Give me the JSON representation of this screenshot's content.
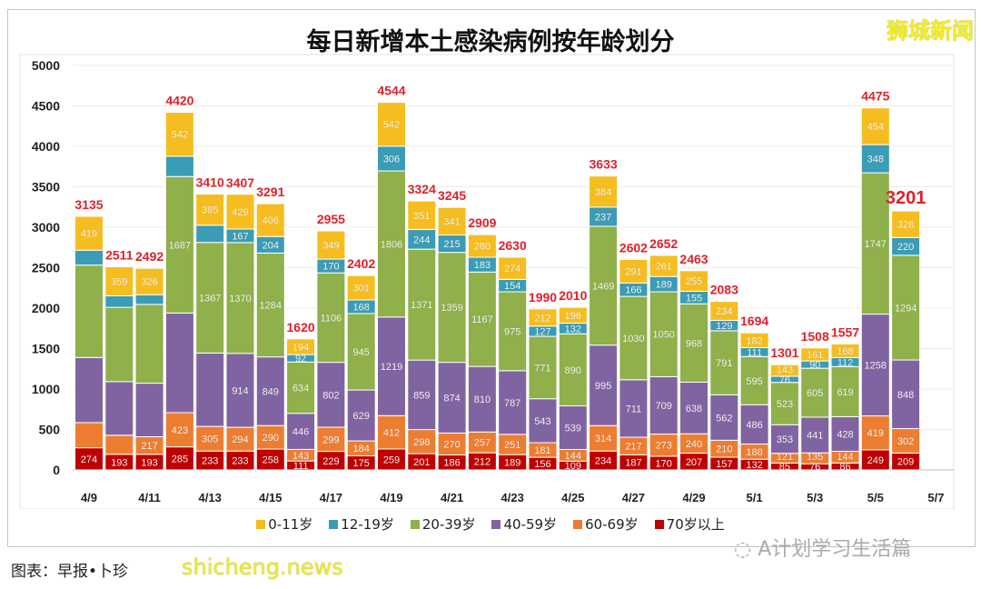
{
  "chart_data": {
    "type": "bar",
    "stacked": true,
    "title": "每日新增本土感染病例按年龄划分",
    "xlabel": "",
    "ylabel": "",
    "ylim": [
      0,
      5000
    ],
    "yticks": [
      0,
      500,
      1000,
      1500,
      2000,
      2500,
      3000,
      3500,
      4000,
      4500,
      5000
    ],
    "grid": true,
    "legend": "bottom",
    "categories": [
      "4/9",
      "4/10",
      "4/11",
      "4/12",
      "4/13",
      "4/14",
      "4/15",
      "4/16",
      "4/17",
      "4/18",
      "4/19",
      "4/20",
      "4/21",
      "4/22",
      "4/23",
      "4/24",
      "4/25",
      "4/26",
      "4/27",
      "4/28",
      "4/29",
      "4/30",
      "5/1",
      "5/2",
      "5/3",
      "5/4",
      "5/5",
      "5/6",
      "5/7"
    ],
    "tick_labels": [
      "4/9",
      "4/11",
      "4/13",
      "4/15",
      "4/17",
      "4/19",
      "4/21",
      "4/23",
      "4/25",
      "4/27",
      "4/29",
      "5/1",
      "5/3",
      "5/5",
      "5/7"
    ],
    "series": [
      {
        "name": "70岁以上",
        "color": "#c00000",
        "values": [
          274,
          193,
          193,
          285,
          233,
          233,
          258,
          111,
          229,
          175,
          259,
          201,
          186,
          212,
          189,
          156,
          109,
          234,
          187,
          170,
          207,
          157,
          132,
          85,
          76,
          86,
          249,
          209,
          null
        ],
        "labeled": [
          1,
          1,
          1,
          1,
          1,
          1,
          1,
          1,
          1,
          1,
          1,
          1,
          1,
          1,
          1,
          1,
          1,
          1,
          1,
          1,
          1,
          1,
          1,
          1,
          1,
          1,
          1,
          1,
          0
        ]
      },
      {
        "name": "60-69岁",
        "color": "#ed7d31",
        "values": [
          311,
          236,
          217,
          423,
          305,
          294,
          290,
          143,
          299,
          184,
          412,
          298,
          270,
          257,
          251,
          181,
          144,
          314,
          217,
          273,
          240,
          210,
          188,
          121,
          135,
          144,
          419,
          302,
          null
        ],
        "labeled": [
          0,
          0,
          1,
          1,
          1,
          1,
          1,
          1,
          1,
          1,
          1,
          1,
          1,
          1,
          1,
          1,
          1,
          1,
          1,
          1,
          1,
          1,
          1,
          1,
          1,
          1,
          1,
          1,
          0
        ]
      },
      {
        "name": "40-59岁",
        "color": "#8064a2",
        "values": [
          805,
          663,
          662,
          1232,
          907,
          914,
          849,
          446,
          802,
          629,
          1219,
          859,
          874,
          810,
          787,
          543,
          539,
          995,
          711,
          709,
          638,
          562,
          486,
          353,
          441,
          428,
          1258,
          848,
          null
        ],
        "labeled": [
          0,
          0,
          0,
          0,
          0,
          1,
          1,
          1,
          1,
          1,
          1,
          1,
          1,
          1,
          1,
          1,
          1,
          1,
          1,
          1,
          1,
          1,
          1,
          1,
          1,
          1,
          1,
          1,
          0
        ]
      },
      {
        "name": "20-39岁",
        "color": "#8fb04a",
        "values": [
          1142,
          918,
          974,
          1687,
          1367,
          1370,
          1284,
          634,
          1106,
          945,
          1806,
          1371,
          1359,
          1167,
          975,
          771,
          890,
          1469,
          1030,
          1050,
          968,
          791,
          595,
          523,
          605,
          619,
          1747,
          1294,
          null
        ],
        "labeled": [
          0,
          0,
          0,
          1,
          1,
          1,
          1,
          1,
          1,
          1,
          1,
          1,
          1,
          1,
          1,
          1,
          1,
          1,
          1,
          1,
          1,
          1,
          1,
          1,
          1,
          1,
          1,
          1,
          0
        ]
      },
      {
        "name": "12-19岁",
        "color": "#3a9cb6",
        "values": [
          184,
          142,
          120,
          251,
          213,
          167,
          204,
          92,
          170,
          168,
          306,
          244,
          215,
          183,
          154,
          127,
          132,
          237,
          166,
          189,
          155,
          129,
          111,
          76,
          90,
          112,
          348,
          220,
          null
        ],
        "labeled": [
          0,
          0,
          0,
          0,
          0,
          1,
          1,
          1,
          1,
          1,
          1,
          1,
          1,
          1,
          1,
          1,
          1,
          1,
          1,
          1,
          1,
          1,
          1,
          1,
          1,
          1,
          1,
          1,
          0
        ]
      },
      {
        "name": "0-11岁",
        "color": "#f5bd1f",
        "values": [
          419,
          359,
          326,
          542,
          385,
          429,
          406,
          194,
          349,
          301,
          542,
          351,
          341,
          280,
          274,
          212,
          196,
          384,
          291,
          261,
          255,
          234,
          182,
          143,
          161,
          168,
          454,
          328,
          null
        ],
        "labeled": [
          1,
          1,
          1,
          1,
          1,
          1,
          1,
          1,
          1,
          1,
          1,
          1,
          1,
          1,
          1,
          1,
          1,
          1,
          1,
          1,
          1,
          1,
          1,
          1,
          1,
          1,
          1,
          1,
          0
        ]
      }
    ],
    "totals": [
      3135,
      2511,
      2492,
      4420,
      3410,
      3407,
      3291,
      1620,
      2955,
      2402,
      4544,
      3324,
      3245,
      2909,
      2630,
      1990,
      2010,
      3633,
      2602,
      2652,
      2463,
      2083,
      1694,
      1301,
      1508,
      1557,
      4475,
      3201,
      null
    ],
    "total_color": "#e0202a"
  },
  "brand": "狮城新闻",
  "credit": "图表：早报•卜珍",
  "watermark_site": "shicheng.news",
  "watermark_account": "A计划学习生活篇",
  "legend_order": [
    "0-11岁",
    "12-19岁",
    "20-39岁",
    "40-59岁",
    "60-69岁",
    "70岁以上"
  ]
}
